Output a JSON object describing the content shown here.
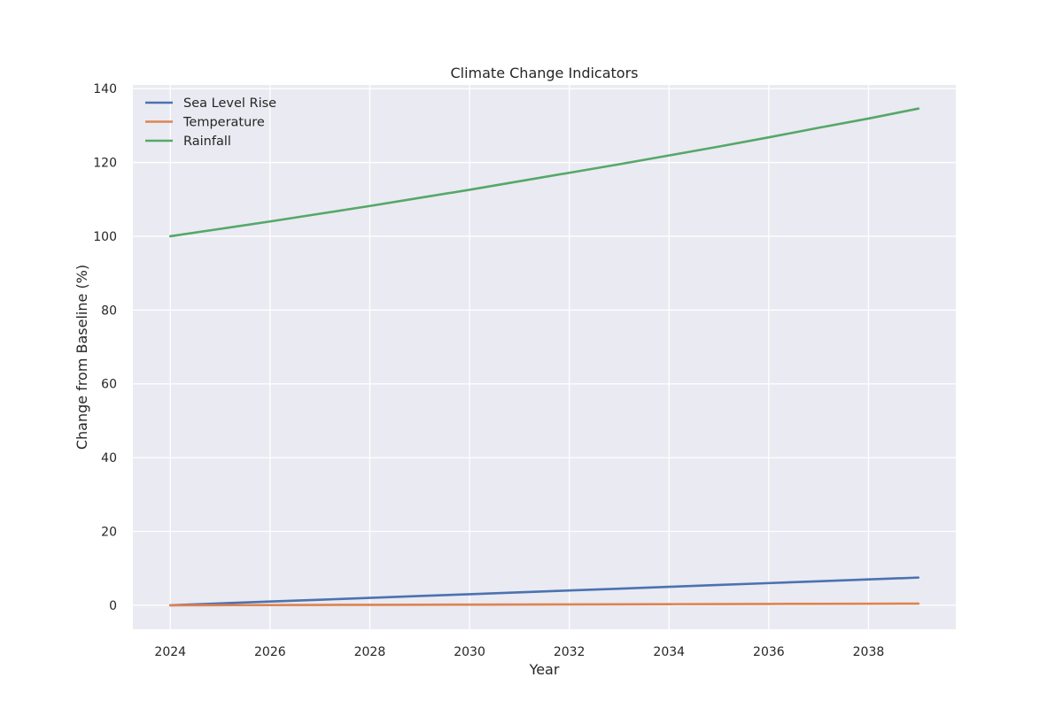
{
  "chart_data": {
    "type": "line",
    "title": "Climate Change Indicators",
    "xlabel": "Year",
    "ylabel": "Change from Baseline (%)",
    "xlim": [
      2023.25,
      2039.75
    ],
    "ylim": [
      -6.5,
      141
    ],
    "x_ticks": [
      2024,
      2026,
      2028,
      2030,
      2032,
      2034,
      2036,
      2038
    ],
    "y_ticks": [
      0,
      20,
      40,
      60,
      80,
      100,
      120,
      140
    ],
    "grid": true,
    "legend": "top-left",
    "x": [
      2024,
      2025,
      2026,
      2027,
      2028,
      2029,
      2030,
      2031,
      2032,
      2033,
      2034,
      2035,
      2036,
      2037,
      2038,
      2039
    ],
    "series": [
      {
        "name": "Sea Level Rise",
        "color": "#4c72b0",
        "values": [
          0.0,
          0.5,
          1.0,
          1.5,
          2.0,
          2.5,
          3.0,
          3.5,
          4.0,
          4.5,
          5.0,
          5.5,
          6.0,
          6.5,
          7.0,
          7.5
        ]
      },
      {
        "name": "Temperature",
        "color": "#dd8452",
        "values": [
          0.0,
          0.03,
          0.06,
          0.09,
          0.12,
          0.15,
          0.18,
          0.21,
          0.24,
          0.27,
          0.3,
          0.33,
          0.36,
          0.39,
          0.42,
          0.45
        ]
      },
      {
        "name": "Rainfall",
        "color": "#55a868",
        "values": [
          100.0,
          102.0,
          104.0,
          106.1,
          108.2,
          110.4,
          112.6,
          114.9,
          117.2,
          119.5,
          121.9,
          124.3,
          126.8,
          129.4,
          131.9,
          134.6
        ]
      }
    ]
  }
}
